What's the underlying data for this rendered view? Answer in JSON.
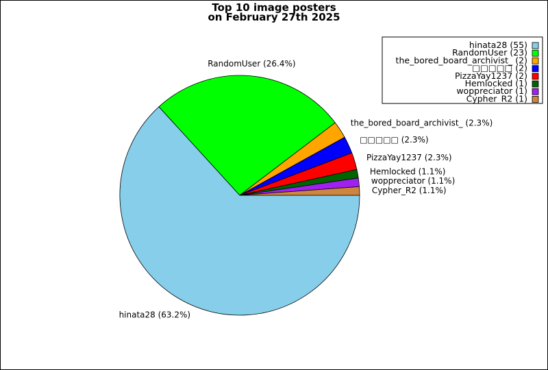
{
  "chart_data": {
    "type": "pie",
    "title_lines": [
      "Top 10 image posters",
      "on February 27th 2025"
    ],
    "slices": [
      {
        "name": "hinata28",
        "count": 55,
        "percent": 63.2,
        "color": "#87ceeb",
        "legend_label": "hinata28 (55)",
        "slice_label": "hinata28 (63.2%)"
      },
      {
        "name": "RandomUser",
        "count": 23,
        "percent": 26.4,
        "color": "#00ff00",
        "legend_label": "RandomUser (23)",
        "slice_label": "RandomUser (26.4%)"
      },
      {
        "name": "the_bored_board_archivist_",
        "count": 2,
        "percent": 2.3,
        "color": "#ffa500",
        "legend_label": "the_bored_board_archivist_ (2)",
        "slice_label": "the_bored_board_archivist_ (2.3%)"
      },
      {
        "name": "□□□□□",
        "count": 2,
        "percent": 2.3,
        "color": "#0000ff",
        "legend_label": "□□□□□ (2)",
        "slice_label": "□□□□□ (2.3%)"
      },
      {
        "name": "PizzaYay1237",
        "count": 2,
        "percent": 2.3,
        "color": "#ff0000",
        "legend_label": "PizzaYay1237 (2)",
        "slice_label": "PizzaYay1237 (2.3%)"
      },
      {
        "name": "Hemlocked",
        "count": 1,
        "percent": 1.1,
        "color": "#006400",
        "legend_label": "Hemlocked (1)",
        "slice_label": "Hemlocked (1.1%)"
      },
      {
        "name": "woppreciator",
        "count": 1,
        "percent": 1.1,
        "color": "#a020f0",
        "legend_label": "woppreciator (1)",
        "slice_label": "woppreciator (1.1%)"
      },
      {
        "name": "Cypher_R2",
        "count": 1,
        "percent": 1.1,
        "color": "#cd853f",
        "legend_label": "Cypher_R2 (1)",
        "slice_label": "Cypher_R2 (1.1%)"
      }
    ],
    "legend_position": "top-right"
  }
}
